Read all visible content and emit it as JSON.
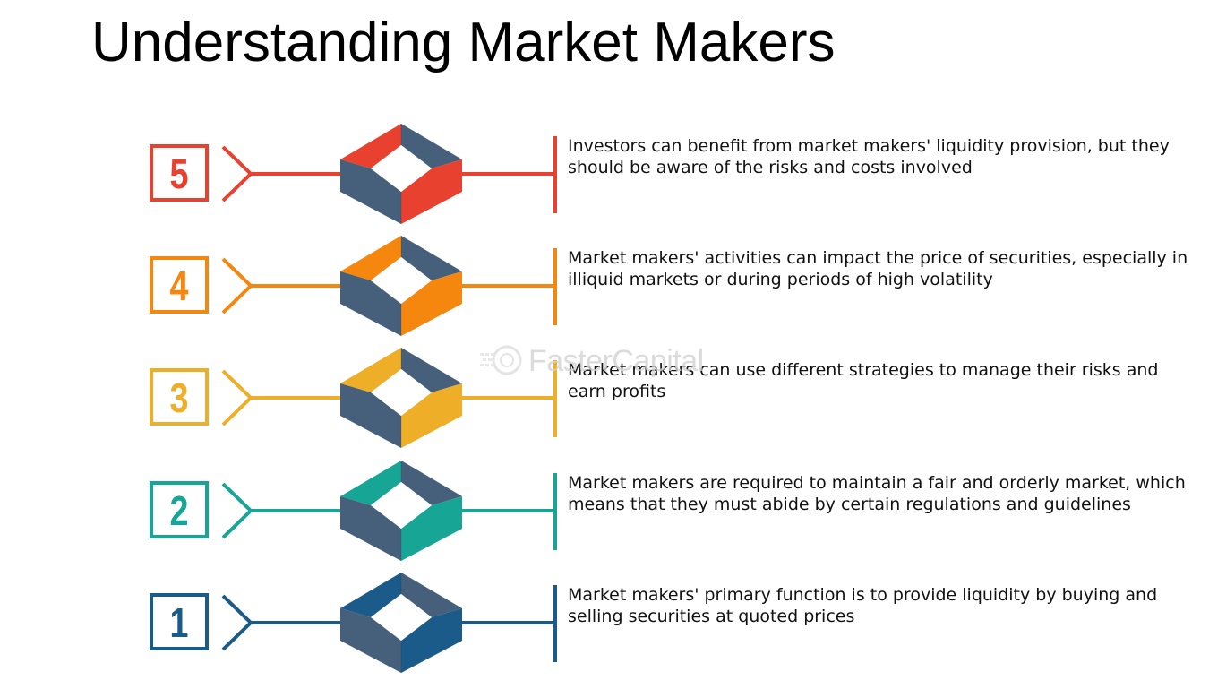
{
  "title": "Understanding Market Makers",
  "watermark": "FasterCapital",
  "steps": [
    {
      "number": "5",
      "color": "#E8412F",
      "text": "Investors can benefit from market makers' liquidity provision, but they should be aware of the risks and costs involved"
    },
    {
      "number": "4",
      "color": "#F5870F",
      "text": "Market makers' activities can impact the price of securities, especially in illiquid markets or during periods of high volatility"
    },
    {
      "number": "3",
      "color": "#EEAE28",
      "text": "Market makers can use different strategies to manage their risks and earn profits"
    },
    {
      "number": "2",
      "color": "#17A596",
      "text": "Market makers are required to maintain a fair and orderly market, which means that they must abide by certain regulations and guidelines"
    },
    {
      "number": "1",
      "color": "#1B5B8A",
      "text": "Market makers' primary function is to provide liquidity by buying and selling securities at quoted prices"
    }
  ],
  "colors": {
    "cube_dark": "#46607B",
    "title": "#000000"
  },
  "icons": {
    "box": "square-frame-icon",
    "connector": "chevron-connector-icon",
    "cube": "hollow-diamond-cube-icon"
  }
}
